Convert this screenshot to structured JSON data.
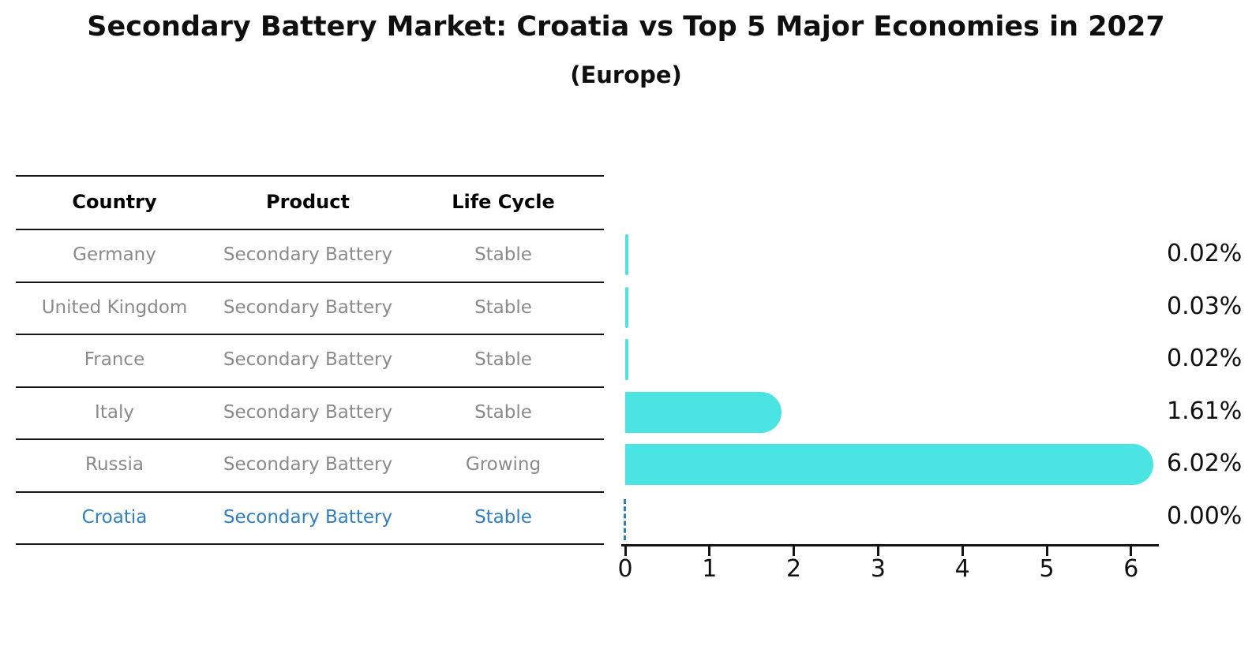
{
  "title": "Secondary Battery Market: Croatia vs Top 5 Major Economies in 2027",
  "subtitle": "(Europe)",
  "table": {
    "headers": [
      "Country",
      "Product",
      "Life Cycle"
    ],
    "rows": [
      {
        "country": "Germany",
        "product": "Secondary Battery",
        "life_cycle": "Stable",
        "highlight": false
      },
      {
        "country": "United Kingdom",
        "product": "Secondary Battery",
        "life_cycle": "Stable",
        "highlight": false
      },
      {
        "country": "France",
        "product": "Secondary Battery",
        "life_cycle": "Stable",
        "highlight": false
      },
      {
        "country": "Italy",
        "product": "Secondary Battery",
        "life_cycle": "Stable",
        "highlight": false
      },
      {
        "country": "Russia",
        "product": "Secondary Battery",
        "life_cycle": "Growing",
        "highlight": false
      },
      {
        "country": "Croatia",
        "product": "Secondary Battery",
        "life_cycle": "Stable",
        "highlight": true
      }
    ]
  },
  "chart_data": {
    "type": "bar",
    "orientation": "horizontal",
    "title": "Secondary Battery Market: Croatia vs Top 5 Major Economies in 2027 (Europe)",
    "categories": [
      "Germany",
      "United Kingdom",
      "France",
      "Italy",
      "Russia",
      "Croatia"
    ],
    "values": [
      0.02,
      0.03,
      0.02,
      1.61,
      6.02,
      0.0
    ],
    "value_labels": [
      "0.02%",
      "0.03%",
      "0.02%",
      "1.61%",
      "6.02%",
      "0.00%"
    ],
    "x_tick_labels": [
      "0",
      "1",
      "2",
      "3",
      "4",
      "5",
      "6"
    ],
    "x_ticks": [
      0,
      1,
      2,
      3,
      4,
      5,
      6
    ],
    "xlim": [
      0,
      6.34
    ],
    "grid": false,
    "legend": false,
    "bar_color": "#4ae4e2",
    "highlight_color": "#2e7ec8",
    "highlight_marker": "dashed zero line for Croatia"
  }
}
